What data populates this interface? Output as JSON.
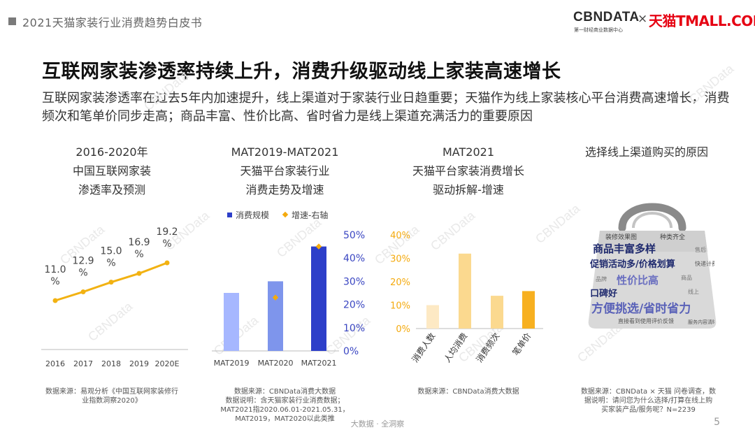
{
  "header": {
    "title": "2021天猫家装行业消费趋势白皮书",
    "brand_cbndata": "CBNDATA",
    "brand_cbndata_sub": "第一财经商业数据中心",
    "brand_times": "×",
    "brand_tmall": "天猫TMALL.COM"
  },
  "page_title": "互联网家装渗透率持续上升，消费升级驱动线上家装高速增长",
  "subtitle": "互联网家装渗透率在过去5年内加速提升，线上渠道对于家装行业日趋重要；天猫作为线上家装核心平台消费高速增长，消费频次和笔单价同步走高；商品丰富、性价比高、省时省力是线上渠道充满活力的重要原因",
  "watermark_text": "CBNData",
  "colors": {
    "line_orange": "#f2b212",
    "bar_light": "#a6b7ff",
    "bar_mid": "#7e95ec",
    "bar_dark": "#2d3fc9",
    "growth_marker": "#f4aa0e",
    "right_axis_text": "#3a46c2",
    "pct_bar_light": "#fde9c4",
    "pct_bar_mid": "#fbd98f",
    "pct_bar_dark": "#f7b020"
  },
  "col1": {
    "title_lines": [
      "2016-2020年",
      "中国互联网家装",
      "渗透率及预测"
    ],
    "source_lines": [
      "数据来源：易观分析《中国互联网家装修行",
      "业指数洞察2020》"
    ]
  },
  "col2": {
    "title_lines": [
      "MAT2019-MAT2021",
      "天猫平台家装行业",
      "消费走势及增速"
    ],
    "legend_bar": "消费规模",
    "legend_dot": "增速-右轴",
    "source_lines": [
      "数据来源：CBNData消费大数据",
      "数据说明：含天猫家装行业消费数据；",
      "MAT2021指2020.06.01-2021.05.31，",
      "MAT2019，MAT2020以此类推"
    ]
  },
  "col3": {
    "title_lines": [
      "MAT2021",
      "天猫平台家装消费增长",
      "驱动拆解-增速"
    ],
    "source_lines": [
      "数据来源：CBNData消费大数据"
    ]
  },
  "col4": {
    "title_lines": [
      "选择线上渠道购买的原因"
    ],
    "word_cloud": [
      "装修效果图",
      "种类齐全",
      "商品丰富多样",
      "促销活动多/价格划算",
      "口碑好",
      "性价比高",
      "快递计费",
      "方便挑选/省时省力",
      "直接看到使用评价反馈",
      "服务内容清晰",
      "商品",
      "线上",
      "品牌",
      "售后"
    ],
    "source_lines": [
      "数据来源：CBNData × 天猫 问卷调查，数",
      "据说明：请问您为什么选择/打算在线上购",
      "买家装产品/服务呢？N=2239"
    ]
  },
  "footer": {
    "center": "大数据 · 全洞察",
    "page": "5"
  },
  "chart_data": [
    {
      "type": "line",
      "title": "",
      "x": [
        "2016",
        "2017",
        "2018",
        "2019",
        "2020E"
      ],
      "series": [
        {
          "values": [
            11.0,
            12.9,
            15.0,
            16.9,
            19.2
          ]
        }
      ],
      "data_labels": [
        "11.0 %",
        "12.9 %",
        "15.0 %",
        "16.9 %",
        "19.2 %"
      ],
      "unit": "%",
      "grid": false
    },
    {
      "type": "bar",
      "title": "",
      "categories": [
        "MAT2019",
        "MAT2020",
        "MAT2021"
      ],
      "series": [
        {
          "name": "消费规模",
          "values": [
            0.5,
            0.6,
            0.9
          ],
          "axis": "left",
          "colors": [
            "#a6b7ff",
            "#7e95ec",
            "#2d3fc9"
          ]
        },
        {
          "name": "增速-右轴",
          "values": [
            0.23,
            0.45
          ],
          "x_index": [
            1,
            2
          ],
          "axis": "right",
          "type": "scatter"
        }
      ],
      "right_axis": {
        "ticks": [
          "0%",
          "10%",
          "20%",
          "30%",
          "40%",
          "50%"
        ],
        "range": [
          0,
          0.5
        ]
      },
      "left_axis": {
        "shown": false,
        "range": [
          0,
          1
        ]
      },
      "legend": "top-center",
      "grid": false
    },
    {
      "type": "bar",
      "title": "",
      "categories": [
        "消费人数",
        "人均消费",
        "消费频次",
        "笔单价"
      ],
      "series": [
        {
          "values": [
            0.1,
            0.32,
            0.14,
            0.16
          ]
        }
      ],
      "y_ticks": [
        "0%",
        "10%",
        "20%",
        "30%",
        "40%"
      ],
      "ylim": [
        0,
        0.4
      ],
      "grid": false
    }
  ]
}
